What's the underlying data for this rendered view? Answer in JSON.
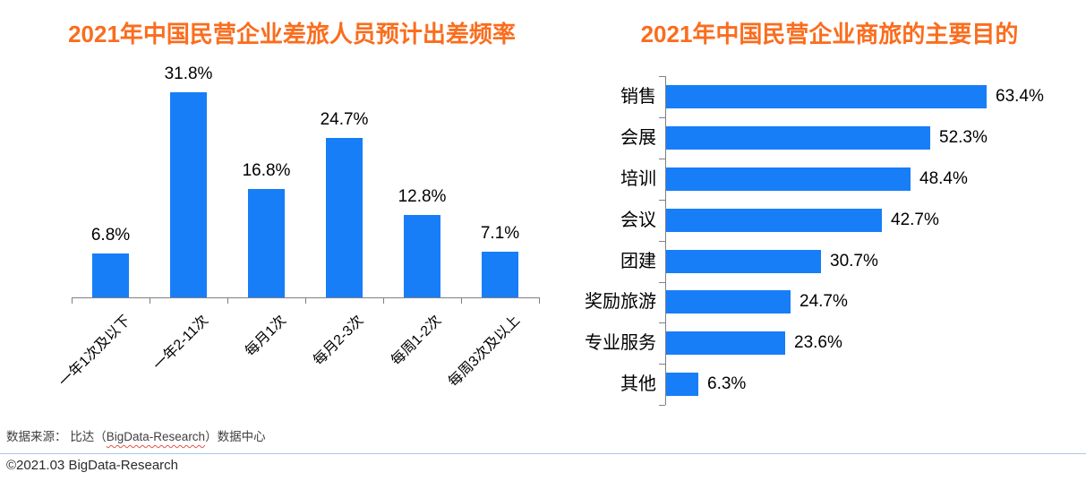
{
  "chart_data": [
    {
      "type": "bar",
      "title": "2021年中国民营企业差旅人员预计出差频率",
      "categories": [
        "一年1次及以下",
        "一年2-11次",
        "每月1次",
        "每月2-3次",
        "每周1-2次",
        "每周3次及以上"
      ],
      "values": [
        6.8,
        31.8,
        16.8,
        24.7,
        12.8,
        7.1
      ],
      "value_labels": [
        "6.8%",
        "31.8%",
        "16.8%",
        "24.7%",
        "12.8%",
        "7.1%"
      ],
      "unit": "%",
      "xlabel": "",
      "ylabel": "",
      "ylim": [
        0,
        35
      ],
      "grid": false,
      "legend": "none"
    },
    {
      "type": "horizontal-bar",
      "title": "2021年中国民营企业商旅的主要目的",
      "categories": [
        "销售",
        "会展",
        "培训",
        "会议",
        "团建",
        "奖励旅游",
        "专业服务",
        "其他"
      ],
      "values": [
        63.4,
        52.3,
        48.4,
        42.7,
        30.7,
        24.7,
        23.6,
        6.3
      ],
      "value_labels": [
        "63.4%",
        "52.3%",
        "48.4%",
        "42.7%",
        "30.7%",
        "24.7%",
        "23.6%",
        "6.3%"
      ],
      "unit": "%",
      "xlabel": "",
      "ylabel": "",
      "xlim": [
        0,
        70
      ],
      "grid": false,
      "legend": "none"
    }
  ],
  "footer": {
    "source_prefix": "数据来源： 比达（",
    "source_brand": "BigData-Research",
    "source_suffix": "）数据中心",
    "copyright": "©2021.03 BigData-Research"
  },
  "colors": {
    "bar": "#177EF8",
    "title": "#FA6D1E",
    "axis": "#808080",
    "label_text": "#000000",
    "source_text": "#3F3F3F",
    "divider": "#AEC8E0",
    "misspell_underline": "#E0524D"
  }
}
